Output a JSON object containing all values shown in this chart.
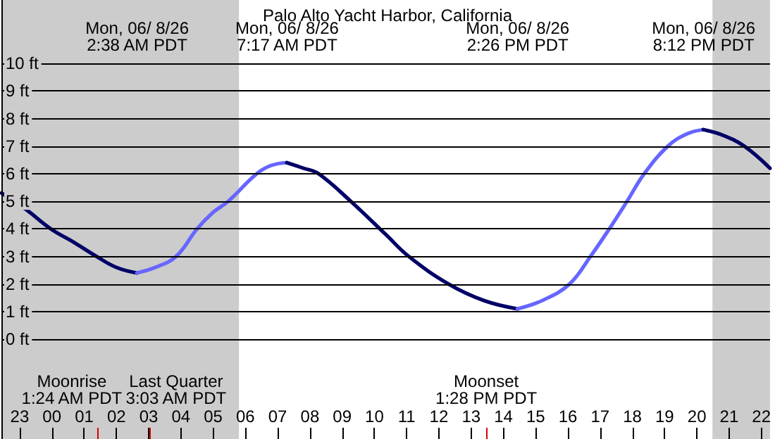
{
  "chart_data": {
    "type": "line",
    "title": "Palo Alto Yacht Harbor, California",
    "xlim": [
      "--06-07T22:26",
      "--06-08T22:16"
    ],
    "ylim": [
      -3.62,
      12.3
    ],
    "xticks": [
      {
        "value": "--06-07T23:00",
        "label": "23"
      },
      {
        "value": "--06-08T00:00",
        "label": "00"
      },
      {
        "value": "--06-08T01:00",
        "label": "01"
      },
      {
        "value": "--06-08T02:00",
        "label": "02"
      },
      {
        "value": "--06-08T03:00",
        "label": "03"
      },
      {
        "value": "--06-08T04:00",
        "label": "04"
      },
      {
        "value": "--06-08T05:00",
        "label": "05"
      },
      {
        "value": "--06-08T06:00",
        "label": "06"
      },
      {
        "value": "--06-08T07:00",
        "label": "07"
      },
      {
        "value": "--06-08T08:00",
        "label": "08"
      },
      {
        "value": "--06-08T09:00",
        "label": "09"
      },
      {
        "value": "--06-08T10:00",
        "label": "10"
      },
      {
        "value": "--06-08T11:00",
        "label": "11"
      },
      {
        "value": "--06-08T12:00",
        "label": "12"
      },
      {
        "value": "--06-08T13:00",
        "label": "13"
      },
      {
        "value": "--06-08T14:00",
        "label": "14"
      },
      {
        "value": "--06-08T15:00",
        "label": "15"
      },
      {
        "value": "--06-08T16:00",
        "label": "16"
      },
      {
        "value": "--06-08T17:00",
        "label": "17"
      },
      {
        "value": "--06-08T18:00",
        "label": "18"
      },
      {
        "value": "--06-08T19:00",
        "label": "19"
      },
      {
        "value": "--06-08T20:00",
        "label": "20"
      },
      {
        "value": "--06-08T21:00",
        "label": "21"
      },
      {
        "value": "--06-08T22:00",
        "label": "22"
      }
    ],
    "yticks": [
      {
        "value": 0,
        "label": "0 ft"
      },
      {
        "value": 1,
        "label": "1 ft"
      },
      {
        "value": 2,
        "label": "2 ft"
      },
      {
        "value": 3,
        "label": "3 ft"
      },
      {
        "value": 4,
        "label": "4 ft"
      },
      {
        "value": 5,
        "label": "5 ft"
      },
      {
        "value": 6,
        "label": "6 ft"
      },
      {
        "value": 7,
        "label": "7 ft"
      },
      {
        "value": 8,
        "label": "8 ft"
      },
      {
        "value": 9,
        "label": "9 ft"
      },
      {
        "value": 10,
        "label": "10 ft"
      }
    ],
    "grid": "y",
    "marker": "none",
    "line_style": "solid",
    "series": [
      {
        "color": "#000066",
        "x": [
          "--06-07T22:26",
          "--06-07T23:12",
          "--06-07T23:58",
          "--06-08T00:42",
          "--06-08T01:23",
          "--06-08T02:00",
          "--06-08T02:38"
        ],
        "values": [
          5.3,
          4.7,
          4.0,
          3.5,
          3.0,
          2.6,
          2.4
        ]
      },
      {
        "color": "#6666ff",
        "x": [
          "--06-08T02:38",
          "--06-08T03:12",
          "--06-08T03:51",
          "--06-08T04:30",
          "--06-08T05:00",
          "--06-08T05:28",
          "--06-08T06:21",
          "--06-08T06:48",
          "--06-08T07:17"
        ],
        "values": [
          2.4,
          2.6,
          3.0,
          4.0,
          4.6,
          5.0,
          6.0,
          6.3,
          6.4
        ]
      },
      {
        "color": "#000066",
        "x": [
          "--06-08T07:17",
          "--06-08T07:48",
          "--06-08T08:16",
          "--06-08T09:16",
          "--06-08T10:21",
          "--06-08T11:04",
          "--06-08T12:18",
          "--06-08T13:24",
          "--06-08T14:26"
        ],
        "values": [
          6.4,
          6.2,
          6.0,
          5.0,
          3.8,
          3.0,
          2.0,
          1.4,
          1.1
        ]
      },
      {
        "color": "#6666ff",
        "x": [
          "--06-08T14:26",
          "--06-08T15:12",
          "--06-08T16:03",
          "--06-08T16:42",
          "--06-08T17:17",
          "--06-08T17:50",
          "--06-08T18:22",
          "--06-08T19:06",
          "--06-08T19:42",
          "--06-08T20:12"
        ],
        "values": [
          1.1,
          1.4,
          2.0,
          3.0,
          4.0,
          5.0,
          6.0,
          7.0,
          7.45,
          7.6
        ]
      },
      {
        "color": "#000066",
        "x": [
          "--06-08T20:12",
          "--06-08T20:48",
          "--06-08T21:28",
          "--06-08T22:16"
        ],
        "values": [
          7.6,
          7.4,
          7.0,
          6.2
        ]
      }
    ],
    "bands": [
      {
        "axis": "x",
        "from": "--06-07T22:26",
        "to": "--06-08T05:48",
        "color": "#cccccc"
      },
      {
        "axis": "x",
        "from": "--06-08T20:29",
        "to": "--06-08T22:16",
        "color": "#cccccc"
      }
    ],
    "ref_lines": [
      {
        "axis": "x",
        "value": "--06-08T01:24",
        "label": "Moonrise\n1:24 AM PDT",
        "color": "#dd0000"
      },
      {
        "axis": "x",
        "value": "--06-08T03:03",
        "label": "Last Quarter\n3:03 AM PDT",
        "color": "#dd0000"
      },
      {
        "axis": "x",
        "value": "--06-08T13:28",
        "label": "Moonset\n1:28 PM PDT",
        "color": "#dd0000"
      }
    ],
    "annotations": [
      "Mon, 06/ 8/26\n2:38 AM PDT",
      "Mon, 06/ 8/26\n7:17 AM PDT",
      "Mon, 06/ 8/26\n2:26 PM PDT",
      "Mon, 06/ 8/26\n8:12 PM PDT"
    ]
  }
}
